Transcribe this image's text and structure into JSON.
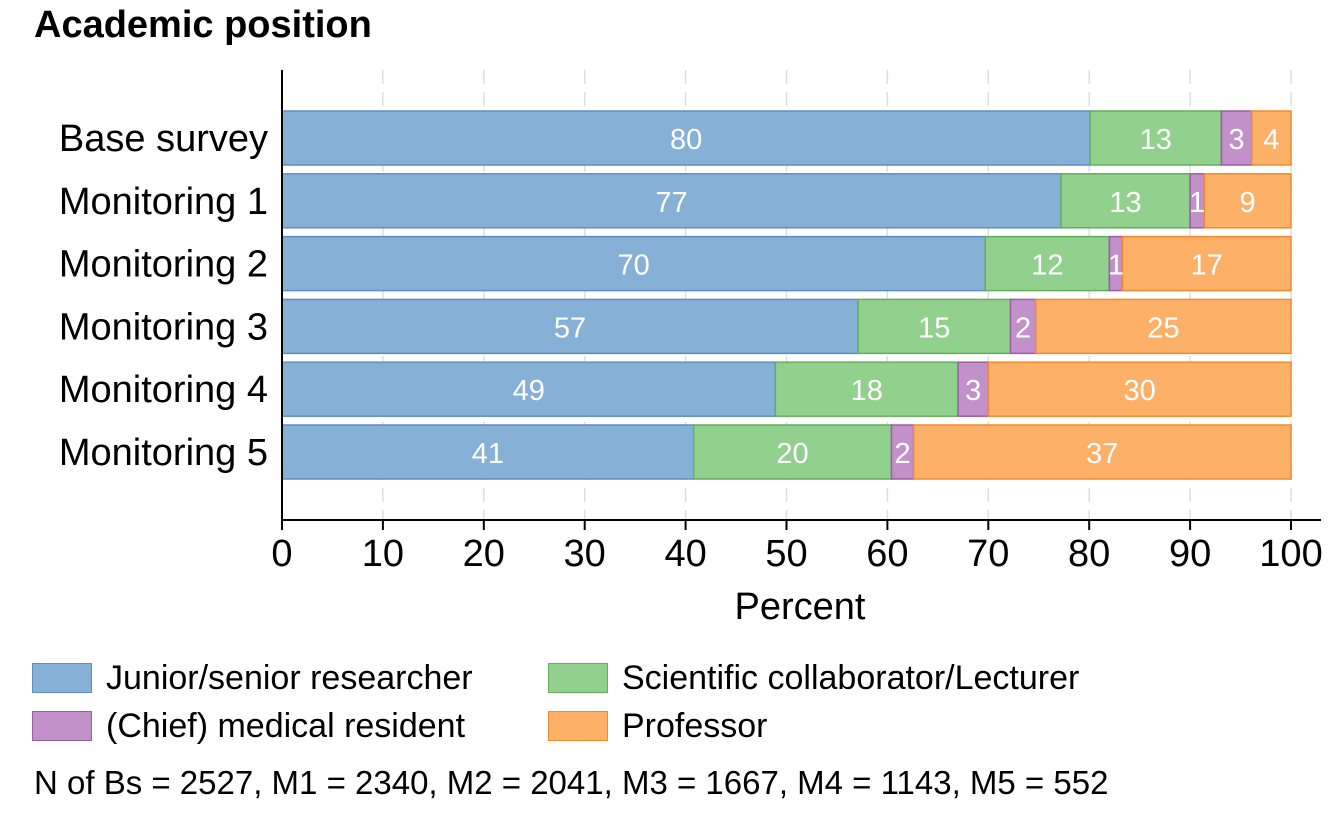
{
  "chart_data": {
    "type": "bar",
    "orientation": "horizontal",
    "stacked": true,
    "title": "Academic position",
    "xlabel": "Percent",
    "xlim": [
      0,
      100
    ],
    "x_ticks": [
      "0",
      "10",
      "20",
      "30",
      "40",
      "50",
      "60",
      "70",
      "80",
      "90",
      "100"
    ],
    "grid": "vertical dashed",
    "legend_position": "bottom",
    "categories": [
      "Base survey",
      "Monitoring 1",
      "Monitoring 2",
      "Monitoring 3",
      "Monitoring 4",
      "Monitoring 5"
    ],
    "series": [
      {
        "name": "Junior/senior researcher",
        "color": "#86b0d6",
        "border": "#5b8fc2",
        "values": [
          80.1,
          77.2,
          69.7,
          57.1,
          48.9,
          40.8
        ]
      },
      {
        "name": "Scientific collaborator/Lecturer",
        "color": "#92d08e",
        "border": "#62b05c",
        "values": [
          13.0,
          12.8,
          12.3,
          15.1,
          18.1,
          19.6
        ]
      },
      {
        "name": "(Chief) medical resident",
        "color": "#c291c9",
        "border": "#9a5ea6",
        "values": [
          3.0,
          1.4,
          1.3,
          2.5,
          3.0,
          2.2
        ]
      },
      {
        "name": "Professor",
        "color": "#fdb068",
        "border": "#f08a2c",
        "values": [
          3.9,
          8.6,
          16.7,
          25.3,
          30.0,
          37.4
        ]
      }
    ],
    "data_labels": [
      [
        "80",
        "13",
        "3",
        "4"
      ],
      [
        "77",
        "13",
        "1",
        "9"
      ],
      [
        "70",
        "12",
        "1",
        "17"
      ],
      [
        "57",
        "15",
        "2",
        "25"
      ],
      [
        "49",
        "18",
        "3",
        "30"
      ],
      [
        "41",
        "20",
        "2",
        "37"
      ]
    ]
  },
  "footnote": "N of Bs = 2527, M1 = 2340, M2 = 2041, M3 = 1667, M4 = 1143, M5 = 552"
}
